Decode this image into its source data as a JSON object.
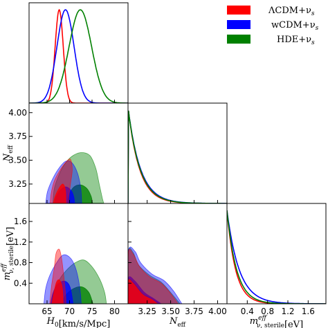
{
  "chart_data": {
    "type": "triangle-corner",
    "legend": {
      "placement": "top-right",
      "entries": [
        {
          "key": "lcdm",
          "label": "ΛCDM+ν",
          "sub": "s",
          "color": "#ff0000"
        },
        {
          "key": "wcdm",
          "label": "wCDM+ν",
          "sub": "s",
          "color": "#0000ff"
        },
        {
          "key": "hde",
          "label": "HDE+ν",
          "sub": "s",
          "color": "#008000"
        }
      ]
    },
    "parameters": [
      {
        "key": "H0",
        "label": "H",
        "sub": "0",
        "unit": "[km/s/Mpc]",
        "range": [
          61,
          83
        ],
        "ticks": [
          "65",
          "70",
          "75",
          "80"
        ],
        "tick_values": [
          65,
          70,
          75,
          80
        ]
      },
      {
        "key": "Neff",
        "label": "N",
        "sub": "eff",
        "unit": "",
        "range": [
          3.046,
          4.1
        ],
        "ticks": [
          "3.25",
          "3.50",
          "3.75",
          "4.00"
        ],
        "tick_values": [
          3.25,
          3.5,
          3.75,
          4.0
        ]
      },
      {
        "key": "meff",
        "label": "m",
        "sup": "eff",
        "sub": "ν, sterile",
        "unit": "[eV]",
        "range": [
          0,
          1.95
        ],
        "ticks": [
          "0.4",
          "0.8",
          "1.2",
          "1.6"
        ],
        "tick_values": [
          0.4,
          0.8,
          1.2,
          1.6
        ]
      }
    ],
    "marginals": {
      "H0": {
        "lcdm": {
          "type": "gaussian",
          "mean": 67.7,
          "sigma": 0.9
        },
        "wcdm": {
          "type": "gaussian",
          "mean": 69.1,
          "sigma": 1.9
        },
        "hde": {
          "type": "gaussian",
          "mean": 72.4,
          "sigma": 2.5
        }
      },
      "Neff": {
        "lcdm": {
          "type": "exp",
          "start": 3.05,
          "scale": 0.12
        },
        "wcdm": {
          "type": "exp",
          "start": 3.05,
          "scale": 0.13
        },
        "hde": {
          "type": "exp",
          "start": 3.05,
          "scale": 0.125
        }
      },
      "meff": {
        "lcdm": {
          "type": "exp",
          "start": 0.0,
          "scale": 0.17
        },
        "wcdm": {
          "type": "exp",
          "start": 0.0,
          "scale": 0.24
        },
        "hde": {
          "type": "exp",
          "start": 0.0,
          "scale": 0.19
        }
      }
    },
    "contours_2d": {
      "Neff_vs_H0": {
        "hde": {
          "outer": [
            [
              66.3,
              3.05
            ],
            [
              66.6,
              3.2
            ],
            [
              67.5,
              3.33
            ],
            [
              68.8,
              3.45
            ],
            [
              70.5,
              3.54
            ],
            [
              72.5,
              3.58
            ],
            [
              74.5,
              3.55
            ],
            [
              75.8,
              3.42
            ],
            [
              76.6,
              3.25
            ],
            [
              77.3,
              3.1
            ],
            [
              77.6,
              3.05
            ]
          ],
          "inner": [
            [
              69.5,
              3.05
            ],
            [
              69.9,
              3.14
            ],
            [
              71.0,
              3.22
            ],
            [
              72.5,
              3.24
            ],
            [
              73.9,
              3.2
            ],
            [
              74.8,
              3.12
            ],
            [
              75.1,
              3.05
            ]
          ]
        },
        "wcdm": {
          "outer": [
            [
              64.7,
              3.05
            ],
            [
              65.1,
              3.17
            ],
            [
              66.2,
              3.3
            ],
            [
              67.7,
              3.42
            ],
            [
              69.2,
              3.49
            ],
            [
              70.6,
              3.47
            ],
            [
              71.8,
              3.36
            ],
            [
              72.5,
              3.2
            ],
            [
              72.7,
              3.05
            ]
          ],
          "inner": [
            [
              66.6,
              3.05
            ],
            [
              67.1,
              3.12
            ],
            [
              68.0,
              3.19
            ],
            [
              69.3,
              3.22
            ],
            [
              70.5,
              3.17
            ],
            [
              71.0,
              3.1
            ],
            [
              71.1,
              3.05
            ]
          ]
        },
        "lcdm": {
          "outer": [
            [
              65.7,
              3.05
            ],
            [
              65.9,
              3.15
            ],
            [
              66.6,
              3.28
            ],
            [
              67.8,
              3.39
            ],
            [
              69.2,
              3.48
            ],
            [
              70.2,
              3.51
            ],
            [
              70.6,
              3.4
            ],
            [
              70.2,
              3.25
            ],
            [
              69.8,
              3.1
            ],
            [
              69.7,
              3.05
            ]
          ],
          "inner": [
            [
              66.4,
              3.05
            ],
            [
              66.8,
              3.12
            ],
            [
              67.6,
              3.2
            ],
            [
              68.5,
              3.25
            ],
            [
              69.1,
              3.18
            ],
            [
              69.2,
              3.05
            ]
          ]
        }
      },
      "meff_vs_H0": {
        "hde": {
          "outer": [
            [
              66.0,
              0.0
            ],
            [
              66.5,
              0.25
            ],
            [
              67.8,
              0.48
            ],
            [
              69.4,
              0.66
            ],
            [
              71.3,
              0.8
            ],
            [
              73.2,
              0.85
            ],
            [
              75.0,
              0.72
            ],
            [
              76.7,
              0.48
            ],
            [
              77.8,
              0.22
            ],
            [
              78.2,
              0.0
            ]
          ],
          "inner": [
            [
              68.3,
              0.0
            ],
            [
              69.0,
              0.15
            ],
            [
              70.8,
              0.29
            ],
            [
              72.7,
              0.33
            ],
            [
              74.3,
              0.22
            ],
            [
              75.2,
              0.0
            ]
          ]
        },
        "wcdm": {
          "outer": [
            [
              64.3,
              0.0
            ],
            [
              64.7,
              0.3
            ],
            [
              65.6,
              0.55
            ],
            [
              67.0,
              0.78
            ],
            [
              68.6,
              0.95
            ],
            [
              70.3,
              0.88
            ],
            [
              71.5,
              0.65
            ],
            [
              72.3,
              0.3
            ],
            [
              72.6,
              0.0
            ]
          ],
          "inner": [
            [
              65.8,
              0.0
            ],
            [
              66.3,
              0.2
            ],
            [
              67.4,
              0.38
            ],
            [
              68.9,
              0.44
            ],
            [
              70.1,
              0.33
            ],
            [
              70.8,
              0.0
            ]
          ]
        },
        "lcdm": {
          "outer": [
            [
              65.6,
              0.0
            ],
            [
              66.0,
              0.35
            ],
            [
              66.6,
              0.7
            ],
            [
              67.0,
              0.98
            ],
            [
              67.7,
              1.06
            ],
            [
              68.2,
              0.9
            ],
            [
              68.7,
              0.55
            ],
            [
              69.1,
              0.2
            ],
            [
              69.2,
              0.0
            ]
          ],
          "inner": [
            [
              66.1,
              0.0
            ],
            [
              66.5,
              0.2
            ],
            [
              67.1,
              0.42
            ],
            [
              67.8,
              0.46
            ],
            [
              68.4,
              0.3
            ],
            [
              68.6,
              0.0
            ]
          ]
        }
      },
      "meff_vs_Neff": {
        "hde": {
          "outer": [
            [
              3.05,
              0.0
            ],
            [
              3.05,
              1.0
            ],
            [
              3.1,
              1.0
            ],
            [
              3.16,
              0.75
            ],
            [
              3.28,
              0.55
            ],
            [
              3.4,
              0.42
            ],
            [
              3.5,
              0.22
            ],
            [
              3.6,
              0.0
            ]
          ],
          "inner": [
            [
              3.05,
              0.0
            ],
            [
              3.05,
              0.46
            ],
            [
              3.1,
              0.42
            ],
            [
              3.2,
              0.2
            ],
            [
              3.3,
              0.1
            ],
            [
              3.38,
              0.0
            ]
          ]
        },
        "wcdm": {
          "outer": [
            [
              3.05,
              0.0
            ],
            [
              3.05,
              1.02
            ],
            [
              3.12,
              1.02
            ],
            [
              3.18,
              0.8
            ],
            [
              3.3,
              0.58
            ],
            [
              3.43,
              0.45
            ],
            [
              3.53,
              0.25
            ],
            [
              3.62,
              0.0
            ]
          ],
          "inner": [
            [
              3.05,
              0.0
            ],
            [
              3.05,
              0.5
            ],
            [
              3.12,
              0.44
            ],
            [
              3.22,
              0.22
            ],
            [
              3.32,
              0.1
            ],
            [
              3.4,
              0.0
            ]
          ]
        },
        "lcdm": {
          "outer": [
            [
              3.05,
              0.0
            ],
            [
              3.05,
              0.98
            ],
            [
              3.1,
              0.97
            ],
            [
              3.17,
              0.72
            ],
            [
              3.28,
              0.52
            ],
            [
              3.4,
              0.4
            ],
            [
              3.5,
              0.2
            ],
            [
              3.58,
              0.0
            ]
          ],
          "inner": [
            [
              3.05,
              0.0
            ],
            [
              3.05,
              0.44
            ],
            [
              3.1,
              0.4
            ],
            [
              3.2,
              0.18
            ],
            [
              3.3,
              0.08
            ],
            [
              3.36,
              0.0
            ]
          ]
        }
      }
    }
  }
}
